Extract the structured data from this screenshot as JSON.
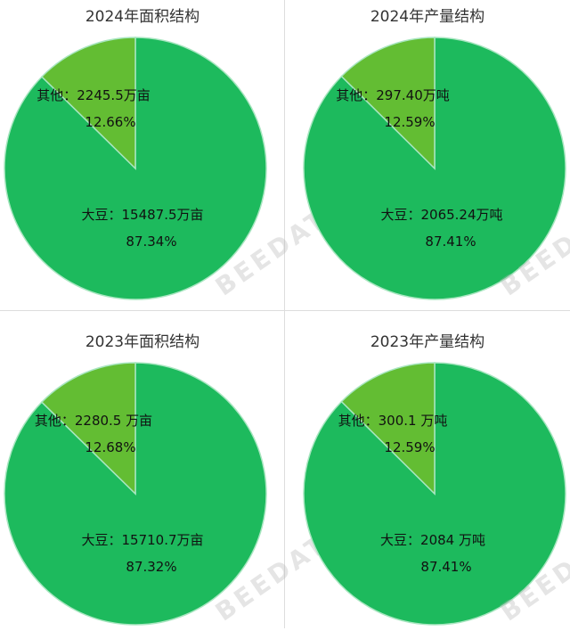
{
  "colors": {
    "main": "#1dba5d",
    "other": "#63bd33",
    "border": "#a8e6c0"
  },
  "watermark": "BEEDATA",
  "chart_data": [
    {
      "type": "pie",
      "title": "2024年面积结构",
      "unit": "万亩",
      "slices": [
        {
          "name": "大豆",
          "value": 15487.5,
          "value_label": "15487.5万亩",
          "percent": "87.34%"
        },
        {
          "name": "其他",
          "value": 2245.5,
          "value_label": "2245.5万亩",
          "percent": "12.66%"
        }
      ]
    },
    {
      "type": "pie",
      "title": "2024年产量结构",
      "unit": "万吨",
      "slices": [
        {
          "name": "大豆",
          "value": 2065.24,
          "value_label": "2065.24万吨",
          "percent": "87.41%"
        },
        {
          "name": "其他",
          "value": 297.4,
          "value_label": "297.40万吨",
          "percent": "12.59%"
        }
      ]
    },
    {
      "type": "pie",
      "title": "2023年面积结构",
      "unit": "万亩",
      "slices": [
        {
          "name": "大豆",
          "value": 15710.7,
          "value_label": "15710.7万亩",
          "percent": "87.32%"
        },
        {
          "name": "其他",
          "value": 2280.5,
          "value_label": "2280.5 万亩",
          "percent": "12.68%"
        }
      ]
    },
    {
      "type": "pie",
      "title": "2023年产量结构",
      "unit": "万吨",
      "slices": [
        {
          "name": "大豆",
          "value": 2084,
          "value_label": "2084 万吨",
          "percent": "87.41%"
        },
        {
          "name": "其他",
          "value": 300.1,
          "value_label": "300.1 万吨",
          "percent": "12.59%"
        }
      ]
    }
  ]
}
